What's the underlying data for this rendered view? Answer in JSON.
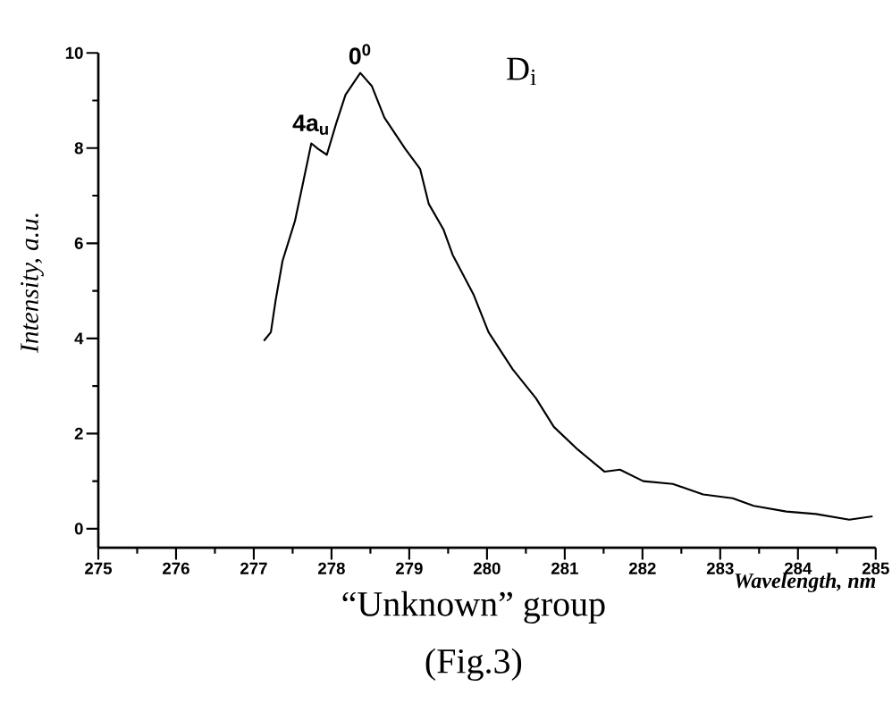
{
  "chart_data": {
    "type": "line",
    "xlabel": "Wavelength, nm",
    "ylabel": "Intensity, a.u.",
    "xlim": [
      275,
      285
    ],
    "ylim": [
      -0.4,
      10
    ],
    "xticks": [
      275,
      276,
      277,
      278,
      279,
      280,
      281,
      282,
      283,
      284,
      285
    ],
    "yticks": [
      0,
      2,
      4,
      6,
      8,
      10
    ],
    "grid": false,
    "marker": "none",
    "line_style": "solid",
    "series": [
      {
        "color": "#000000",
        "x": [
          277.13,
          277.22,
          277.28,
          277.37,
          277.53,
          277.64,
          277.74,
          277.83,
          277.94,
          278.06,
          278.18,
          278.37,
          278.52,
          278.68,
          278.95,
          279.14,
          279.25,
          279.44,
          279.56,
          279.83,
          280.02,
          280.33,
          280.63,
          280.86,
          281.17,
          281.51,
          281.71,
          282.01,
          282.39,
          282.78,
          283.16,
          283.43,
          283.85,
          284.23,
          284.66,
          284.96
        ],
        "values": [
          3.95,
          4.13,
          4.79,
          5.63,
          6.47,
          7.32,
          8.1,
          7.98,
          7.86,
          8.52,
          9.12,
          9.58,
          9.3,
          8.64,
          7.98,
          7.56,
          6.83,
          6.29,
          5.75,
          4.91,
          4.13,
          3.35,
          2.74,
          2.14,
          1.66,
          1.2,
          1.24,
          1.0,
          0.94,
          0.72,
          0.64,
          0.48,
          0.36,
          0.31,
          0.19,
          0.26
        ]
      }
    ],
    "annotations": [
      {
        "text": "4a$_{u}$",
        "x": 277.74,
        "y": 8.1
      },
      {
        "text": "0$^{0}$",
        "x": 278.37,
        "y": 9.58
      },
      "D$_{i}$",
      "“Unknown” group",
      "(Fig.3)"
    ]
  }
}
